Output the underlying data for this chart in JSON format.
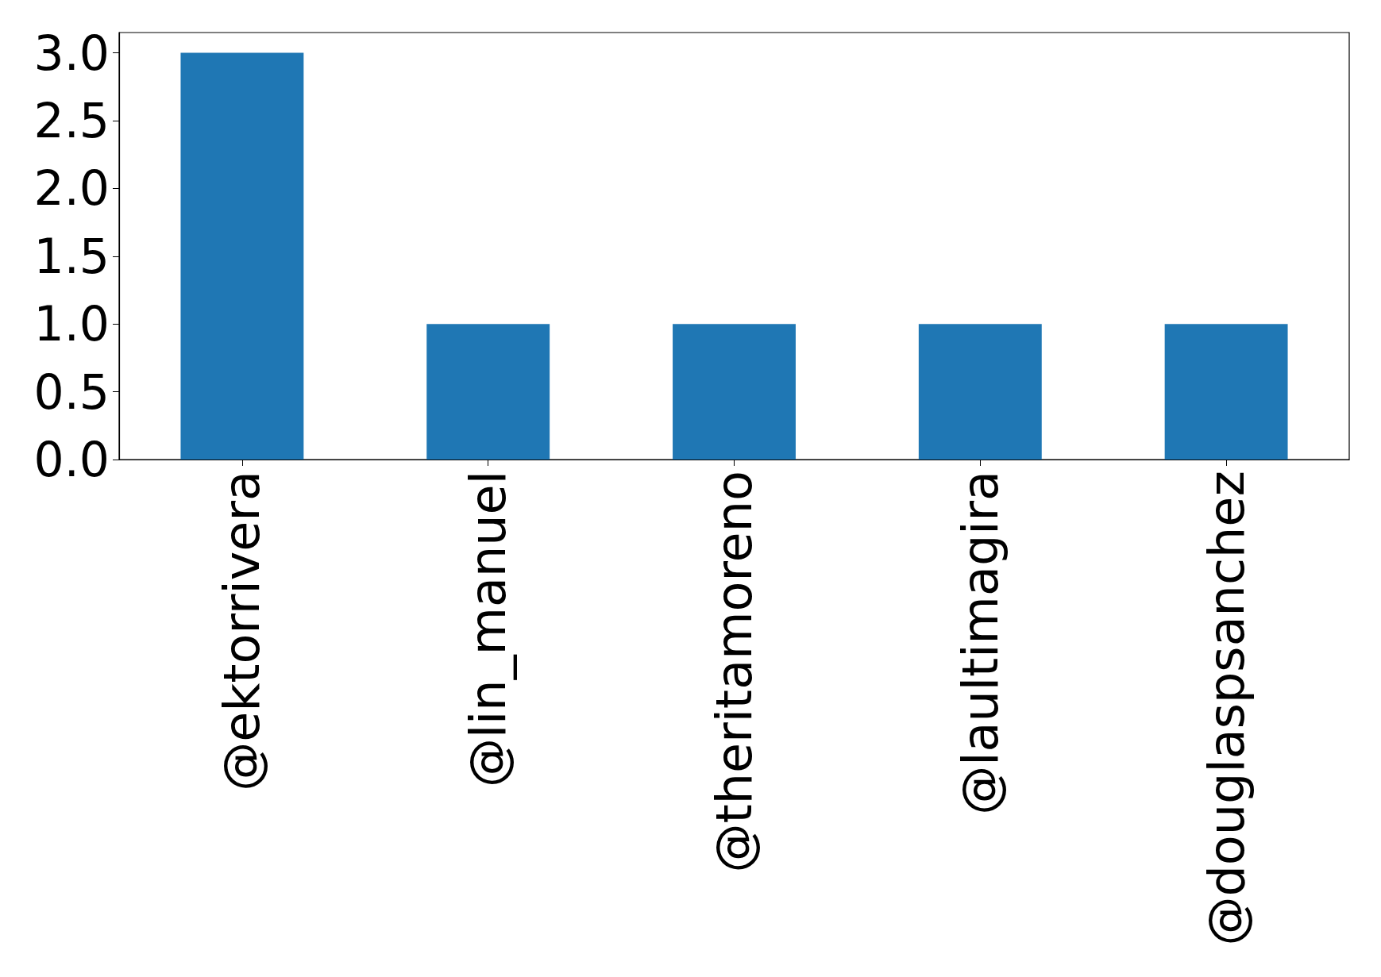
{
  "chart_data": {
    "type": "bar",
    "categories": [
      "@ektorrivera",
      "@lin_manuel",
      "@theritamoreno",
      "@laultimagira",
      "@douglaspsanchez"
    ],
    "values": [
      3,
      1,
      1,
      1,
      1
    ],
    "color": "#1f77b4",
    "ylim": [
      0,
      3.15
    ],
    "yticks": [
      {
        "value": 0,
        "label": "0.0"
      },
      {
        "value": 0.5,
        "label": "0.5"
      },
      {
        "value": 1,
        "label": "1.0"
      },
      {
        "value": 1.5,
        "label": "1.5"
      },
      {
        "value": 2,
        "label": "2.0"
      },
      {
        "value": 2.5,
        "label": "2.5"
      },
      {
        "value": 3,
        "label": "3.0"
      }
    ],
    "grid": false
  }
}
